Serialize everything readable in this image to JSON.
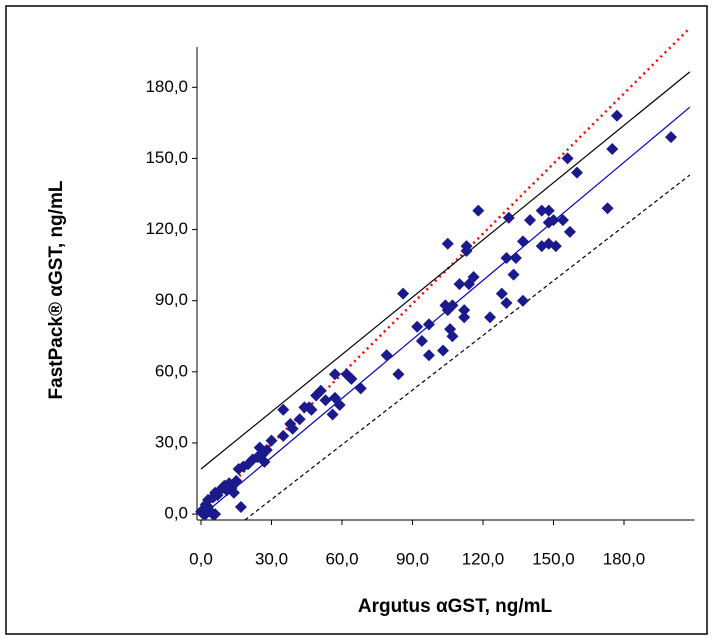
{
  "chart_data": {
    "type": "scatter",
    "x_label": "Argutus αGST, ng/mL",
    "y_label": "FastPack® αGST, ng/mL",
    "xlim": [
      -1.7,
      210
    ],
    "ylim": [
      -2.5,
      197
    ],
    "xticks": [
      {
        "value": 0,
        "label": "0,0"
      },
      {
        "value": 30,
        "label": "30,0"
      },
      {
        "value": 60,
        "label": "60,0"
      },
      {
        "value": 90,
        "label": "90,0"
      },
      {
        "value": 120,
        "label": "120,0"
      },
      {
        "value": 150,
        "label": "150,0"
      },
      {
        "value": 180,
        "label": "180,0"
      }
    ],
    "yticks": [
      {
        "value": 0,
        "label": "0,0"
      },
      {
        "value": 30,
        "label": "30,0"
      },
      {
        "value": 60,
        "label": "60,0"
      },
      {
        "value": 90,
        "label": "90,0"
      },
      {
        "value": 120,
        "label": "120,0"
      },
      {
        "value": 150,
        "label": "150,0"
      },
      {
        "value": 180,
        "label": "180,0"
      }
    ],
    "color": "#1a1a8c",
    "x": [
      118,
      131,
      140,
      134,
      130,
      133,
      137,
      128,
      130,
      137,
      123,
      113,
      113,
      114,
      112,
      112,
      116,
      105,
      107,
      105,
      104,
      106,
      107,
      103,
      110,
      97,
      94,
      97,
      86,
      92,
      84,
      79,
      68,
      64,
      62,
      57,
      57,
      56,
      53,
      51,
      49,
      47,
      44,
      42,
      38,
      39,
      35,
      35,
      30,
      28,
      26,
      24,
      22,
      20,
      18,
      16,
      15,
      13,
      12,
      11,
      9,
      7,
      6,
      5,
      3,
      2,
      1,
      0,
      2,
      4,
      5,
      6,
      3,
      1,
      17,
      10,
      14,
      25,
      27,
      46,
      59,
      177,
      175,
      173,
      200,
      160,
      156,
      157,
      154,
      148,
      148,
      151,
      148,
      145,
      150,
      145
    ],
    "values": [
      128,
      125,
      124,
      108,
      108,
      101,
      115,
      93,
      89,
      90,
      83,
      111,
      113,
      97,
      86,
      83,
      100,
      114,
      88,
      86,
      88,
      78,
      75,
      69,
      97,
      80,
      73,
      67,
      93,
      79,
      59,
      67,
      53,
      57,
      59,
      59,
      49,
      42,
      48,
      52,
      50,
      44,
      45,
      40,
      38,
      36,
      33,
      44,
      31,
      27,
      25,
      24,
      23,
      21,
      20,
      19,
      14,
      11,
      13,
      10,
      11,
      8,
      9,
      7,
      6,
      4,
      2,
      1,
      0,
      1,
      0,
      0,
      3,
      0,
      3,
      12,
      9,
      28,
      22,
      45,
      46,
      168,
      154,
      129,
      159,
      144,
      150,
      119,
      124,
      128,
      123,
      113,
      114,
      113,
      124,
      128
    ],
    "lines": [
      {
        "color": "#ff0000",
        "dash": "dot",
        "x": [
          0,
          208
        ],
        "values": [
          0,
          205
        ]
      },
      {
        "color": "#0000cc",
        "dash": "solid",
        "x": [
          0,
          208
        ],
        "values": [
          -1,
          171.6
        ]
      },
      {
        "color": "#000000",
        "dash": "solid",
        "x": [
          0,
          208
        ],
        "values": [
          19,
          186.5
        ]
      },
      {
        "color": "#000000",
        "dash": "dash",
        "x": [
          18.7,
          208
        ],
        "values": [
          -2.5,
          143
        ]
      }
    ]
  }
}
